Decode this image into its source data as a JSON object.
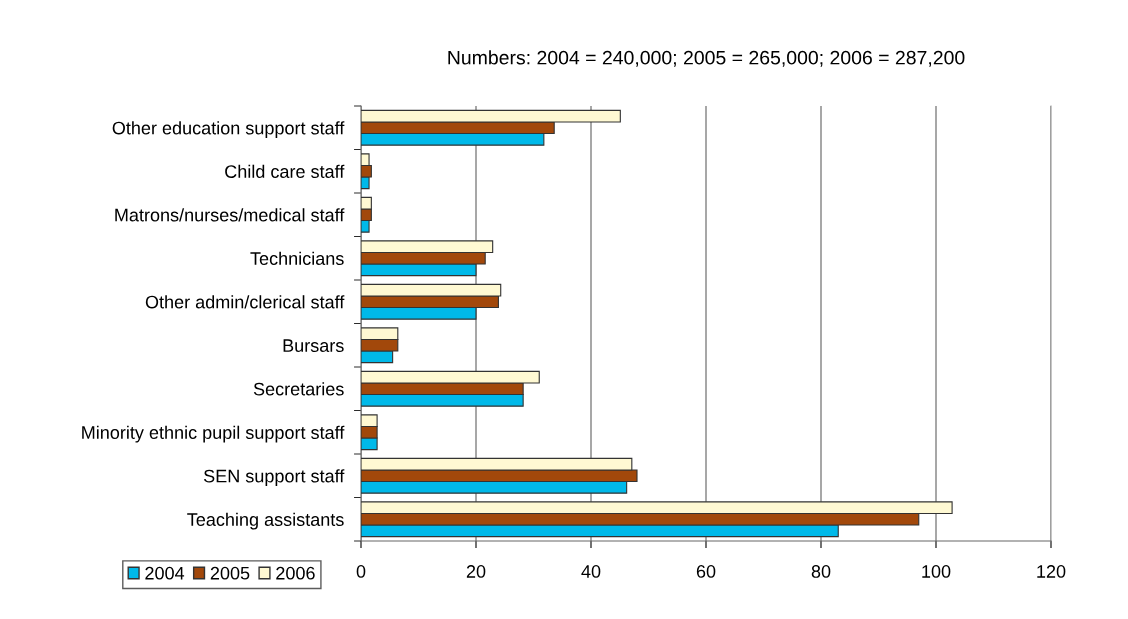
{
  "chart_data": {
    "type": "bar",
    "orientation": "horizontal",
    "title": "Numbers: 2004 = 240,000; 2005 = 265,000; 2006 = 287,200",
    "categories": [
      "Other education support staff",
      "Child care staff",
      "Matrons/nurses/medical staff",
      "Technicians",
      "Other admin/clerical staff",
      "Bursars",
      "Secretaries",
      "Minority ethnic pupil support staff",
      "SEN support staff",
      "Teaching assistants"
    ],
    "series": [
      {
        "name": "2004",
        "color": "#00b9e9",
        "values": [
          31.8,
          1.4,
          1.4,
          20,
          20,
          5.5,
          28.2,
          2.8,
          46.2,
          83.0
        ]
      },
      {
        "name": "2005",
        "color": "#a2480b",
        "values": [
          33.6,
          1.8,
          1.8,
          21.6,
          23.9,
          6.4,
          28.2,
          2.8,
          48.0,
          97.0
        ]
      },
      {
        "name": "2006",
        "color": "#fff9d3",
        "values": [
          45.1,
          1.4,
          1.8,
          22.9,
          24.3,
          6.4,
          31.0,
          2.8,
          47.1,
          102.8
        ]
      }
    ],
    "xlim": [
      0,
      120
    ],
    "xticks": [
      0,
      20,
      40,
      60,
      80,
      100,
      120
    ],
    "grid": "x",
    "legend": "bottom left"
  }
}
